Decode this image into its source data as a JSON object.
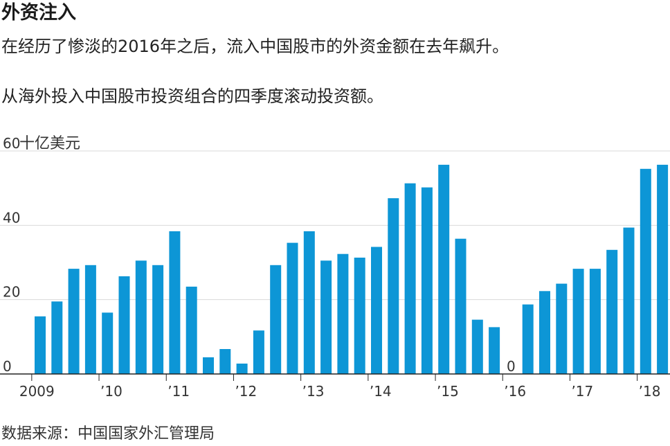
{
  "header": {
    "title": "外资注入",
    "subtitle": "在经历了惨淡的2016年之后，流入中国股市的外资金额在去年飙升。",
    "note": "从海外投入中国股市投资组合的四季度滚动投资额。"
  },
  "footer": {
    "source": "数据来源：中国国家外汇管理局"
  },
  "chart_data": {
    "type": "bar",
    "unit_label": "十亿美元",
    "bar_color": "#0d96d6",
    "grid": true,
    "ylim": [
      0,
      60
    ],
    "yticks": [
      0,
      20,
      40,
      60
    ],
    "ytick_labels": [
      "0",
      "20",
      "40",
      "60"
    ],
    "categories": [
      "2009 Q1",
      "2009 Q2",
      "2009 Q3",
      "2009 Q4",
      "2010 Q1",
      "2010 Q2",
      "2010 Q3",
      "2010 Q4",
      "2011 Q1",
      "2011 Q2",
      "2011 Q3",
      "2011 Q4",
      "2012 Q1",
      "2012 Q2",
      "2012 Q3",
      "2012 Q4",
      "2013 Q1",
      "2013 Q2",
      "2013 Q3",
      "2013 Q4",
      "2014 Q1",
      "2014 Q2",
      "2014 Q3",
      "2014 Q4",
      "2015 Q1",
      "2015 Q2",
      "2015 Q3",
      "2015 Q4",
      "2016 Q1",
      "2016 Q2",
      "2016 Q3",
      "2016 Q4",
      "2017 Q1",
      "2017 Q2",
      "2017 Q3",
      "2017 Q4",
      "2018 Q1",
      "2018 Q2"
    ],
    "values": [
      15.5,
      19.5,
      28.3,
      29.3,
      16.5,
      26.3,
      30.5,
      29.3,
      38.4,
      23.5,
      4.5,
      6.7,
      2.8,
      11.7,
      29.3,
      35.3,
      38.4,
      30.5,
      32.3,
      31.3,
      34.2,
      47.3,
      51.3,
      50.2,
      56.3,
      36.4,
      14.6,
      12.6,
      0,
      18.7,
      22.3,
      24.3,
      28.3,
      28.3,
      33.4,
      39.4,
      55.2,
      56.3
    ],
    "zero_label": "0",
    "zero_label_index": 28,
    "xtick_labels": [
      {
        "index": 0,
        "label": "2009"
      },
      {
        "index": 4,
        "label": "’10"
      },
      {
        "index": 8,
        "label": "’11"
      },
      {
        "index": 12,
        "label": "’12"
      },
      {
        "index": 16,
        "label": "’13"
      },
      {
        "index": 20,
        "label": "’14"
      },
      {
        "index": 24,
        "label": "’15"
      },
      {
        "index": 28,
        "label": "’16"
      },
      {
        "index": 32,
        "label": "’17"
      },
      {
        "index": 36,
        "label": "’18"
      }
    ]
  }
}
